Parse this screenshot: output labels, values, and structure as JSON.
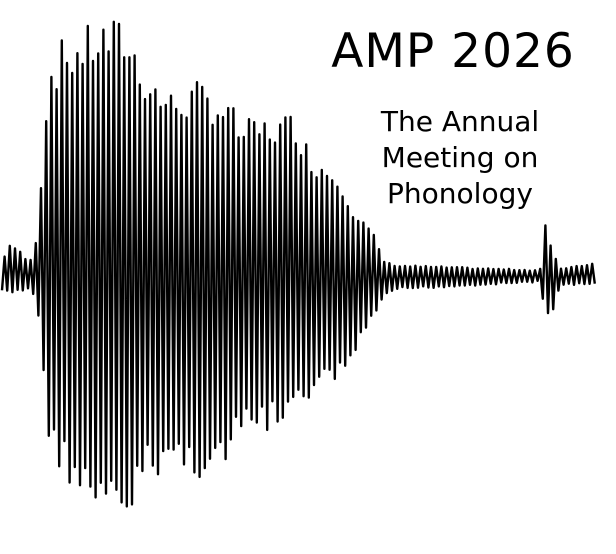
{
  "logo": {
    "title": "AMP 2026",
    "subtitle_lines": [
      "The Annual",
      "Meeting on",
      "Phonology"
    ],
    "waveform_icon": "sound-waveform-icon",
    "colors": {
      "ink": "#000000",
      "background": "#ffffff"
    }
  }
}
